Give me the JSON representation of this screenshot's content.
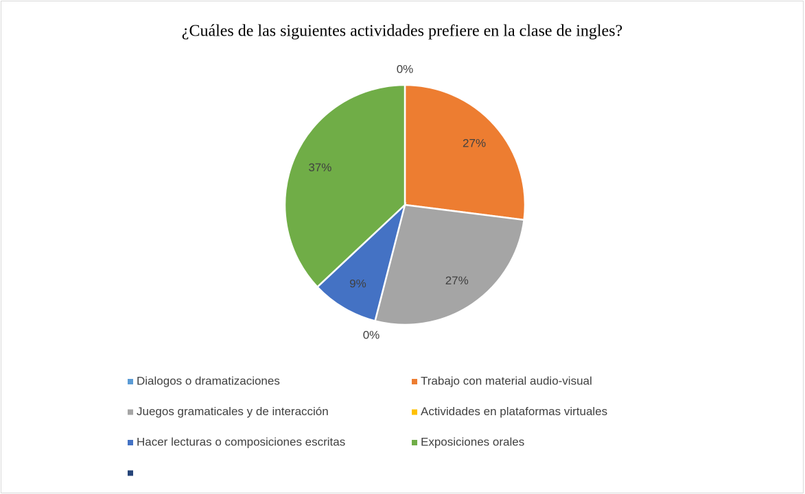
{
  "chart_data": {
    "type": "pie",
    "title": "¿Cuáles de las siguientes actividades prefiere en la clase de ingles?",
    "categories": [
      "Dialogos o dramatizaciones",
      "Trabajo con material audio-visual",
      "Juegos gramaticales y de interacción",
      "Actividades en plataformas virtuales",
      "Hacer lecturas o composiciones escritas",
      "Exposiciones orales",
      null
    ],
    "values": [
      0,
      27,
      27,
      0,
      9,
      37,
      null
    ],
    "value_labels": [
      "0%",
      "27%",
      "27%",
      "0%",
      "9%",
      "37%",
      null
    ],
    "colors": [
      "#5b9bd5",
      "#ed7d31",
      "#a5a5a5",
      "#ffc000",
      "#4472c4",
      "#70ad47",
      "#264478"
    ],
    "legend": "bottom"
  }
}
